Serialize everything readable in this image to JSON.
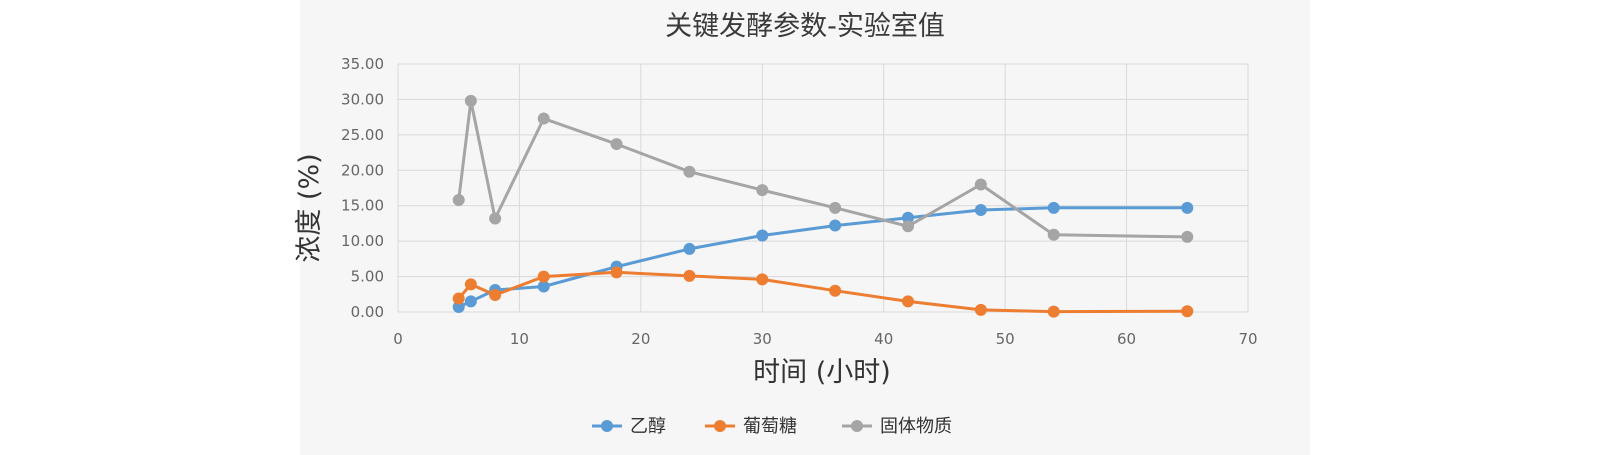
{
  "chart_data": {
    "type": "line",
    "title": "关键发酵参数-实验室值",
    "xlabel": "时间 (小时)",
    "ylabel": "浓度 (%)",
    "xlim": [
      0,
      70
    ],
    "ylim": [
      0,
      35
    ],
    "x_ticks": [
      "0",
      "10",
      "20",
      "30",
      "40",
      "50",
      "60",
      "70"
    ],
    "y_ticks": [
      "0.00",
      "5.00",
      "10.00",
      "15.00",
      "20.00",
      "25.00",
      "30.00",
      "35.00"
    ],
    "grid": true,
    "legend_position": "bottom",
    "series": [
      {
        "name": "乙醇",
        "color": "#5b9bd5",
        "x": [
          5,
          6,
          8,
          12,
          18,
          24,
          30,
          36,
          42,
          48,
          54,
          65
        ],
        "values": [
          0.7,
          1.5,
          3.1,
          3.6,
          6.4,
          8.9,
          10.8,
          12.2,
          13.3,
          14.4,
          14.7,
          14.7
        ]
      },
      {
        "name": "葡萄糖",
        "color": "#ed7d31",
        "x": [
          5,
          6,
          8,
          12,
          18,
          24,
          30,
          36,
          42,
          48,
          54,
          65
        ],
        "values": [
          1.9,
          3.9,
          2.4,
          5.0,
          5.6,
          5.1,
          4.6,
          3.0,
          1.5,
          0.3,
          0.05,
          0.1
        ]
      },
      {
        "name": "固体物质",
        "color": "#a5a5a5",
        "x": [
          5,
          6,
          8,
          12,
          18,
          24,
          30,
          36,
          42,
          48,
          54,
          65
        ],
        "values": [
          15.8,
          29.8,
          13.2,
          27.3,
          23.7,
          19.8,
          17.2,
          14.7,
          12.1,
          18.0,
          10.9,
          10.6
        ]
      }
    ]
  }
}
